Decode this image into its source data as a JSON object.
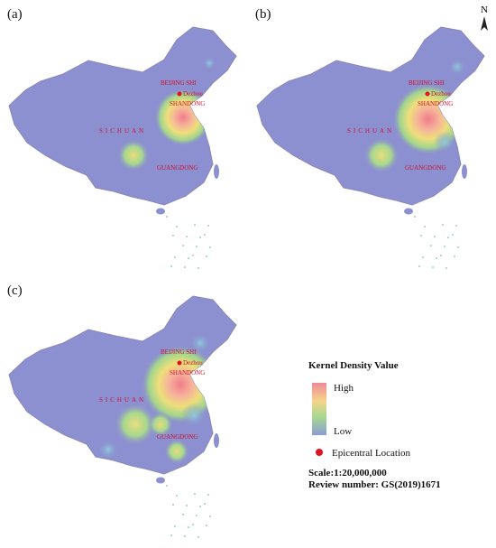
{
  "panels": [
    {
      "label": "(a)",
      "places": {
        "beijing": "BEIJING SHI",
        "dezhou": "Dezhou",
        "shandong": "SHANDONG",
        "sichuan": "SICHUAN",
        "guangdong": "GUANGDONG"
      }
    },
    {
      "label": "(b)",
      "places": {
        "beijing": "BEIJING SHI",
        "dezhou": "Dezhou",
        "shandong": "SHANDONG",
        "sichuan": "SICHUAN",
        "guangdong": "GUANGDONG"
      }
    },
    {
      "label": "(c)",
      "places": {
        "beijing": "BEIJING SHI",
        "dezhou": "Dezhou",
        "shandong": "SHANDONG",
        "sichuan": "SICHUAN",
        "guangdong": "GUANGDONG"
      }
    }
  ],
  "north": "N",
  "legend": {
    "title": "Kernel Density Value",
    "high": "High",
    "low": "Low",
    "epicenter": "Epicentral Location",
    "scale": "Scale:1:20,000,000",
    "review": "Review number: GS(2019)1671"
  }
}
